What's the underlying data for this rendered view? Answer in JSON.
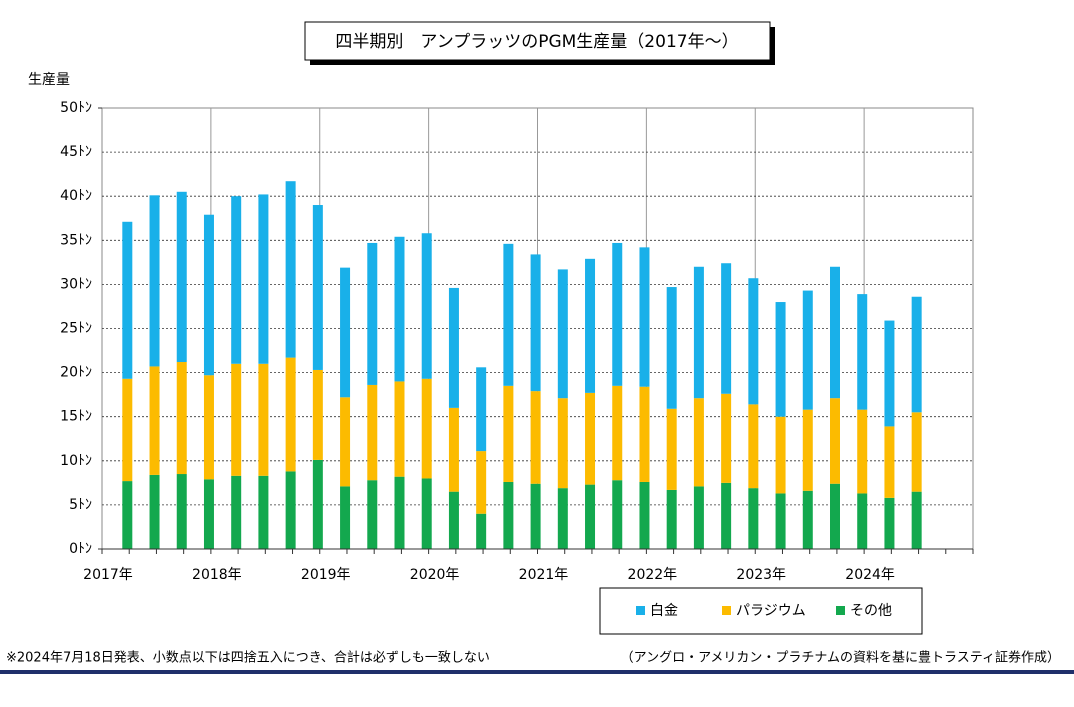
{
  "chart_data": {
    "type": "stacked_bar",
    "title": "四半期別　アンプラッツのPGM生産量（2017年～）",
    "ylabel": "生産量",
    "categories": [
      null,
      null,
      null,
      null,
      null,
      null,
      null,
      null,
      null,
      null,
      null,
      null,
      null,
      null,
      null,
      null,
      null,
      null,
      null,
      null,
      null,
      null,
      null,
      null,
      null,
      null,
      null,
      null,
      null,
      null,
      null,
      null
    ],
    "year_labels": [
      "2017年",
      "2018年",
      "2019年",
      "2020年",
      "2021年",
      "2022年",
      "2023年",
      "2024年"
    ],
    "series": [
      {
        "name": "その他",
        "color": "#13a84e",
        "values": [
          7.7,
          8.4,
          8.5,
          7.9,
          8.3,
          8.3,
          8.8,
          10.1,
          7.1,
          7.8,
          8.2,
          8.0,
          6.5,
          4.0,
          7.6,
          7.4,
          6.9,
          7.3,
          7.8,
          7.6,
          6.7,
          7.1,
          7.5,
          6.9,
          6.3,
          6.6,
          7.4,
          6.3,
          5.8,
          6.5,
          null,
          null
        ]
      },
      {
        "name": "パラジウム",
        "color": "#fcbb00",
        "values": [
          11.6,
          12.3,
          12.7,
          11.8,
          12.7,
          12.7,
          12.9,
          10.2,
          10.1,
          10.8,
          10.8,
          11.3,
          9.5,
          7.1,
          10.9,
          10.5,
          10.2,
          10.4,
          10.7,
          10.8,
          9.2,
          10.0,
          10.1,
          9.5,
          8.7,
          9.2,
          9.7,
          9.5,
          8.1,
          9.0,
          null,
          null
        ]
      },
      {
        "name": "白金",
        "color": "#19b0e9",
        "values": [
          17.8,
          19.4,
          19.3,
          18.2,
          19.0,
          19.2,
          20.0,
          18.7,
          14.7,
          16.1,
          16.4,
          16.5,
          13.6,
          9.5,
          16.1,
          15.5,
          14.6,
          15.2,
          16.2,
          15.8,
          13.8,
          14.9,
          14.8,
          14.3,
          13.0,
          13.5,
          14.9,
          13.1,
          12.0,
          13.1,
          null,
          null
        ]
      }
    ],
    "legend_order": [
      2,
      1,
      0
    ],
    "ylim": [
      0,
      50
    ],
    "yticks": [
      {
        "value": 0,
        "label": "0ﾄﾝ"
      },
      {
        "value": 5,
        "label": "5ﾄﾝ"
      },
      {
        "value": 10,
        "label": "10ﾄﾝ"
      },
      {
        "value": 15,
        "label": "15ﾄﾝ"
      },
      {
        "value": 20,
        "label": "20ﾄﾝ"
      },
      {
        "value": 25,
        "label": "25ﾄﾝ"
      },
      {
        "value": 30,
        "label": "30ﾄﾝ"
      },
      {
        "value": 35,
        "label": "35ﾄﾝ"
      },
      {
        "value": 40,
        "label": "40ﾄﾝ"
      },
      {
        "value": 45,
        "label": "45ﾄﾝ"
      },
      {
        "value": 50,
        "label": "50ﾄﾝ"
      }
    ],
    "grid": true,
    "note": "※2024年7月18日発表、小数点以下は四捨五入につき、合計は必ずしも一致しない",
    "source": "（アングロ・アメリカン・プラチナムの資料を基に豊トラスティ証券作成）"
  }
}
